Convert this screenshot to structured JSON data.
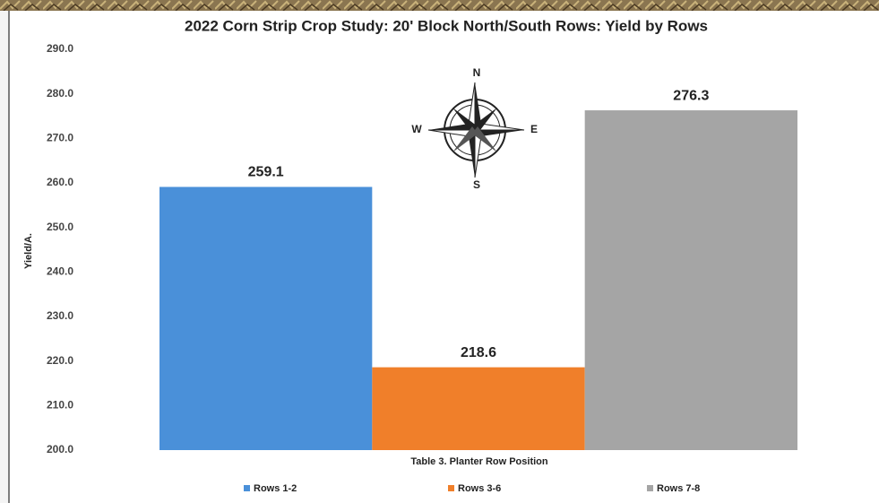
{
  "chart_data": {
    "type": "bar",
    "title": "2022 Corn Strip Crop Study: 20' Block North/South Rows: Yield by Rows",
    "x_label": "Table 3.  Planter Row Position",
    "y_label": "Yield/A.",
    "categories": [
      "Rows 1-2",
      "Rows 3-6",
      "Rows 7-8"
    ],
    "values": [
      259.1,
      218.6,
      276.3
    ],
    "colors": [
      "#4a90d9",
      "#f07f2a",
      "#a5a5a5"
    ],
    "ylim": [
      200,
      290
    ],
    "yticks": [
      {
        "value": 200,
        "label": "200.0"
      },
      {
        "value": 210,
        "label": "210.0"
      },
      {
        "value": 220,
        "label": "220.0"
      },
      {
        "value": 230,
        "label": "230.0"
      },
      {
        "value": 240,
        "label": "240.0"
      },
      {
        "value": 250,
        "label": "250.0"
      },
      {
        "value": 260,
        "label": "260.0"
      },
      {
        "value": 270,
        "label": "270.0"
      },
      {
        "value": 280,
        "label": "280.0"
      },
      {
        "value": 290,
        "label": "290.0"
      }
    ],
    "grid": false,
    "legend": "bottom",
    "compass_labels": {
      "north": "N",
      "east": "E",
      "south": "S",
      "west": "W"
    }
  }
}
